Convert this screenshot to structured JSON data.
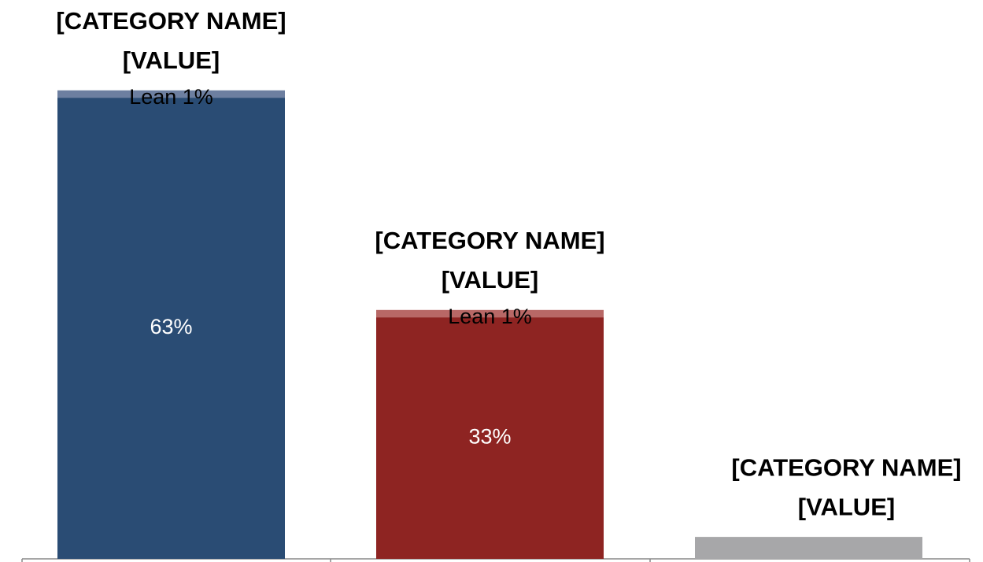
{
  "chart_data": {
    "type": "stacked-bar",
    "categories": [
      "[CATEGORY NAME]",
      "[CATEGORY NAME]",
      "[CATEGORY NAME]"
    ],
    "total_labels": [
      "[VALUE]",
      "[VALUE]",
      "[VALUE]"
    ],
    "series": [
      {
        "colors": [
          "#2a4c74",
          "#8e2422",
          "#a7a7a9"
        ],
        "values": [
          63,
          33,
          3
        ],
        "value_labels": [
          "63%",
          "33%",
          null
        ]
      },
      {
        "colors": [
          "#6d7fa0",
          "#b86866",
          null
        ],
        "values": [
          1,
          1,
          null
        ],
        "value_labels": [
          "Lean 1%",
          "Lean 1%",
          null
        ]
      }
    ]
  }
}
